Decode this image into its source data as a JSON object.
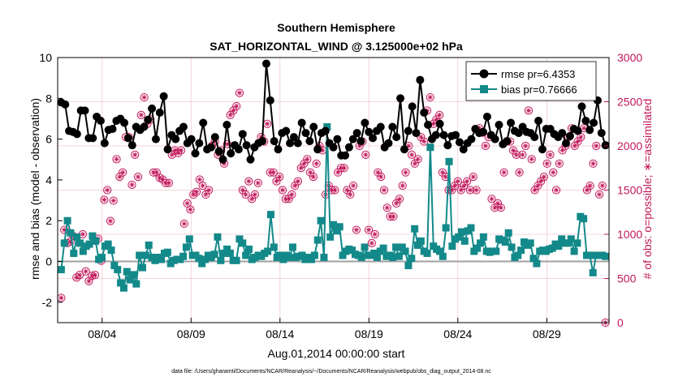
{
  "chart_data": {
    "type": "line",
    "title": "Southern Hemisphere",
    "subtitle": "SAT_HORIZONTAL_WIND @ 3.125000e+02 hPa",
    "xlabel": "Aug.01,2014 00:00:00 start",
    "ylabel": "rmse and bias (model - observation)",
    "ylabel_right": "# of obs: o=possible; ∗=assimilated",
    "footnote": "data file: /Users/gharamti/Documents/NCAR/Reanalysis/~/Documents/NCAR/Reanalysis/webpub/obs_diag_output_2014-08.nc",
    "xlim": [
      1.0,
      32.0
    ],
    "ylim": [
      -3,
      10
    ],
    "ylim_right": [
      0,
      3000
    ],
    "xticks": [
      3.5,
      8.5,
      13.5,
      18.5,
      23.5,
      28.5
    ],
    "xtick_labels": [
      "08/04",
      "08/09",
      "08/14",
      "08/19",
      "08/24",
      "08/29"
    ],
    "yticks": [
      -2,
      0,
      2,
      4,
      6,
      8,
      10
    ],
    "ytick_labels": [
      "-2",
      "0",
      "2",
      "4",
      "6",
      "8",
      "10"
    ],
    "yticks_right": [
      0,
      500,
      1000,
      1500,
      2000,
      2500,
      3000
    ],
    "ytick_labels_right": [
      "0",
      "500",
      "1000",
      "1500",
      "2000",
      "2500",
      "3000"
    ],
    "legend": {
      "placement": "top-right",
      "entries": [
        "rmse pr=6.4353",
        "bias pr=0.76666"
      ]
    },
    "colors": {
      "rmse": "#000000",
      "bias": "#13898a",
      "obs": "#c2185b",
      "grid": "#f0c8d2",
      "zero_line": "#a0a0a0"
    },
    "series": [
      {
        "name": "rmse pr=6.4353",
        "values": [
          7.8,
          7.7,
          6.4,
          6.35,
          6.25,
          7.4,
          7.4,
          6.05,
          6.05,
          7.1,
          6.9,
          5.8,
          6.45,
          6.5,
          6.9,
          7.0,
          6.8,
          6.05,
          5.7,
          6.6,
          6.45,
          6.6,
          6.95,
          7.5,
          6.0,
          7.3,
          8.1,
          5.5,
          6.2,
          6.0,
          6.4,
          6.6,
          5.8,
          6.0,
          5.3,
          5.8,
          6.8,
          5.5,
          5.6,
          6.1,
          5.4,
          5.0,
          6.7,
          5.3,
          5.7,
          5.5,
          6.25,
          5.7,
          5.0,
          5.6,
          5.8,
          5.9,
          9.7,
          7.9,
          5.9,
          5.5,
          6.3,
          6.4,
          5.8,
          6.1,
          5.8,
          6.8,
          6.3,
          5.9,
          6.6,
          5.5,
          6.3,
          6.4,
          5.8,
          5.6,
          6.0,
          5.2,
          5.2,
          5.6,
          6.0,
          6.3,
          5.9,
          6.8,
          6.35,
          6.05,
          6.4,
          6.6,
          5.6,
          5.8,
          6.6,
          6.1,
          8.0,
          5.5,
          6.4,
          7.6,
          6.3,
          8.9,
          7.3,
          6.7,
          6.0,
          6.2,
          6.75,
          6.2,
          5.7,
          6.15,
          6.2,
          5.85,
          5.5,
          5.8,
          6.0,
          6.5,
          6.3,
          6.35,
          7.1,
          6.2,
          6.0,
          6.7,
          5.75,
          5.9,
          6.8,
          6.4,
          6.3,
          6.6,
          6.35,
          6.3,
          6.1,
          6.9,
          5.5,
          6.5,
          6.5,
          6.25,
          6.1,
          6.3,
          5.8,
          6.15,
          6.5,
          6.4,
          7.6,
          6.9,
          6.45,
          6.8,
          7.9,
          6.3,
          5.7
        ]
      },
      {
        "name": "bias pr=0.76666",
        "values": [
          -0.4,
          0.9,
          2.0,
          1.4,
          0.4,
          1.2,
          0.9,
          0.5,
          0.75,
          0.85,
          1.25,
          1.0,
          0.1,
          0.2,
          0.75,
          0.85,
          0.55,
          -0.2,
          -0.4,
          -1.05,
          -1.3,
          -0.5,
          -0.9,
          -0.65,
          -1.1,
          0.3,
          -0.3,
          0.3,
          0.8,
          0.2,
          0.05,
          0.2,
          0.1,
          0.4,
          0.45,
          -0.1,
          0.05,
          0.1,
          0.1,
          0.25,
          0.7,
          1.1,
          0.3,
          0.3,
          0.15,
          -0.1,
          0.1,
          0.3,
          0.2,
          0.35,
          1.2,
          0.05,
          0.4,
          0.6,
          0.4,
          0.05,
          0.05,
          1.1,
          0.9,
          0.3,
          0.6,
          0.1,
          0.2,
          0.3,
          0.25,
          0.4,
          0.5,
          2.3,
          0.7,
          0.2,
          0.3,
          0.1,
          0.3,
          0.2,
          0.7,
          0.2,
          0.25,
          0.3,
          0.1,
          0.2,
          0.1,
          0.3,
          1.05,
          2.0,
          0.2,
          6.6,
          1.2,
          1.8,
          1.5,
          1.7,
          0.3,
          0.5,
          0.6,
          0.55,
          0.35,
          0.3,
          0.2,
          0.7,
          0.3,
          0.3,
          0.4,
          0.2,
          0.5,
          0.65,
          0.25,
          0.3,
          0.2,
          0.7,
          0.25,
          0.7,
          0.5,
          -0.2,
          0.15,
          1.6,
          0.8,
          1.0,
          0.5,
          0.4,
          5.6,
          0.75,
          0.6,
          0.5,
          0.25,
          1.65,
          4.9,
          0.75,
          1.1,
          1.2,
          1.45,
          1.0,
          1.5,
          1.65,
          0.5,
          0.65,
          0.9,
          1.2,
          0.5,
          0.45,
          0.5,
          0.5,
          1.1,
          1.05,
          0.95,
          1.4,
          0.7,
          0.2,
          0.3,
          0.55,
          0.95,
          0.8,
          0.9,
          0.15,
          -0.1,
          0.5,
          0.55,
          0.5,
          0.6,
          0.65,
          0.85,
          0.75,
          1.1,
          0.9,
          0.9,
          1.1,
          0.5,
          0.9,
          2.2,
          2.1,
          0.3,
          0.3,
          -0.55,
          0.3,
          0.3,
          0.3,
          0.25
        ]
      },
      {
        "name": "possible",
        "values": [
          280,
          1050,
          900,
          920,
          980,
          510,
          540,
          1000,
          580,
          470,
          530,
          540,
          950,
          700,
          1390,
          1500,
          1150,
          1380,
          1850,
          1650,
          1700,
          2100,
          2100,
          1560,
          1900,
          1650,
          2350,
          2550,
          2250,
          2300,
          1700,
          1700,
          1640,
          1620,
          1580,
          1580,
          1900,
          1950,
          1920,
          1950,
          1120,
          1350,
          1280,
          1450,
          1480,
          1620,
          1550,
          1450,
          1500,
          2000,
          2050,
          1900,
          1950,
          1800,
          2020,
          2350,
          2400,
          2450,
          2600,
          1500,
          1450,
          1600,
          1400,
          1450,
          1580,
          2100,
          2050,
          2250,
          1700,
          1700,
          1600,
          1650,
          1500,
          1400,
          1400,
          1450,
          1550,
          1600,
          1750,
          1800,
          1850,
          1700,
          1650,
          1800,
          2000,
          1950,
          1450,
          1550,
          1500,
          1500,
          1700,
          1750,
          1750,
          1500,
          1450,
          1550,
          1050,
          2000,
          2050,
          1900,
          1050,
          900,
          1000,
          1700,
          1650,
          1500,
          1300,
          1200,
          1200,
          1350,
          1400,
          1550,
          1700,
          2000,
          1900,
          1800,
          1850,
          2100,
          2050,
          2400,
          2550,
          2250,
          2300,
          2350,
          1700,
          1650,
          1500,
          1500,
          1550,
          1600,
          1500,
          1550,
          1600,
          1500,
          1650,
          1500,
          2200,
          2150,
          2000,
          2100,
          1400,
          1300,
          1350,
          1300,
          1700,
          2050,
          2050,
          1950,
          1900,
          1700,
          1900,
          2000,
          2400,
          1850,
          1500,
          1550,
          1600,
          1650,
          1800,
          1900,
          1700,
          1500,
          1800,
          1950,
          2000,
          2100,
          2200,
          2000,
          2050,
          2100,
          2200,
          1500,
          1550,
          1800,
          2000,
          1450,
          1550,
          0
        ]
      }
    ]
  }
}
